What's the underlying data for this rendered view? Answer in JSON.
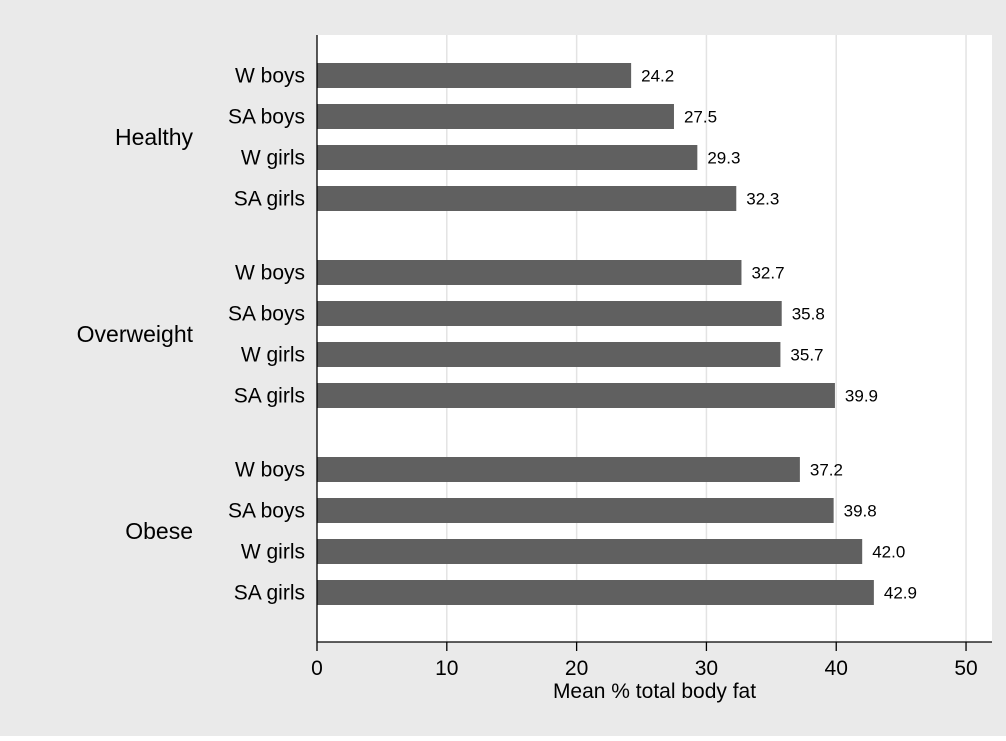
{
  "chart_data": {
    "type": "bar",
    "orientation": "horizontal",
    "xlabel": "Mean % total body fat",
    "xlim": [
      0,
      52
    ],
    "xticks": [
      0,
      10,
      20,
      30,
      40,
      50
    ],
    "grid": true,
    "legend": "none",
    "colors": {
      "background": "#eaeaea",
      "plot_background": "#ffffff",
      "bar": "#606060",
      "grid": "#e3e3e3",
      "axis": "#000000",
      "text": "#000000"
    },
    "groups": [
      {
        "name": "Healthy",
        "bars": [
          {
            "label": "W boys",
            "value": 24.2,
            "value_label": "24.2"
          },
          {
            "label": "SA boys",
            "value": 27.5,
            "value_label": "27.5"
          },
          {
            "label": "W girls",
            "value": 29.3,
            "value_label": "29.3"
          },
          {
            "label": "SA girls",
            "value": 32.3,
            "value_label": "32.3"
          }
        ]
      },
      {
        "name": "Overweight",
        "bars": [
          {
            "label": "W boys",
            "value": 32.7,
            "value_label": "32.7"
          },
          {
            "label": "SA boys",
            "value": 35.8,
            "value_label": "35.8"
          },
          {
            "label": "W girls",
            "value": 35.7,
            "value_label": "35.7"
          },
          {
            "label": "SA girls",
            "value": 39.9,
            "value_label": "39.9"
          }
        ]
      },
      {
        "name": "Obese",
        "bars": [
          {
            "label": "W boys",
            "value": 37.2,
            "value_label": "37.2"
          },
          {
            "label": "SA boys",
            "value": 39.8,
            "value_label": "39.8"
          },
          {
            "label": "W girls",
            "value": 42.0,
            "value_label": "42.0"
          },
          {
            "label": "SA girls",
            "value": 42.9,
            "value_label": "42.9"
          }
        ]
      }
    ]
  }
}
